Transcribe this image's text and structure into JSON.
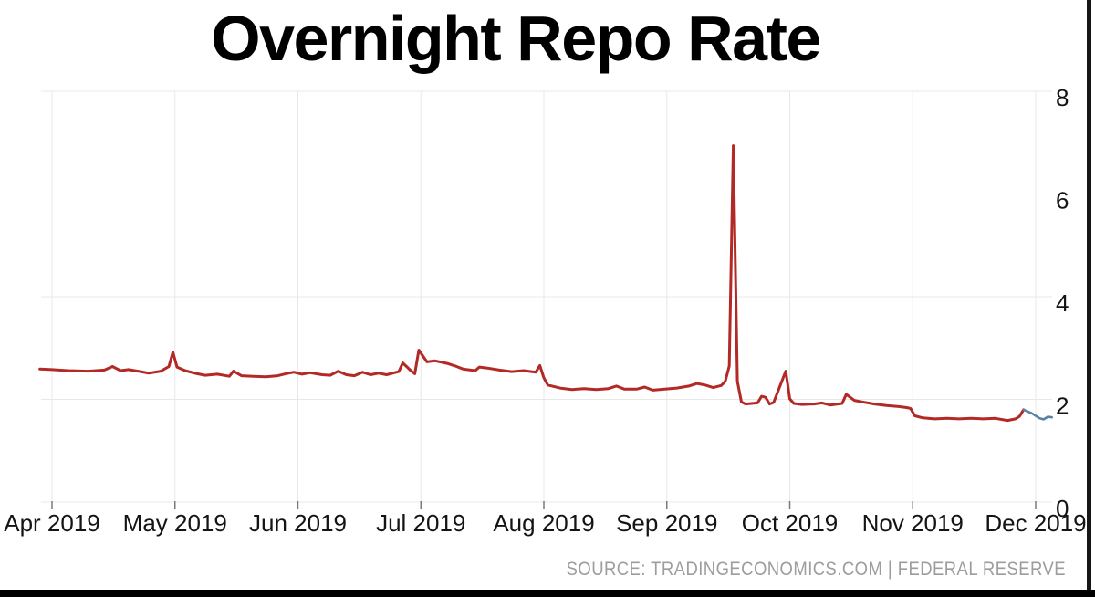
{
  "page": {
    "title": "Overnight Repo Rate",
    "source_credit": "SOURCE: TRADINGECONOMICS.COM | FEDERAL RESERVE"
  },
  "colors": {
    "background": "#ffffff",
    "title_text": "#000000",
    "axis_text": "#141414",
    "axis_tick": "#7a7a7a",
    "grid": "#e8e8e8",
    "series_main": "#b22925",
    "series_latest": "#5d81a5",
    "source_text": "#9d9d9d",
    "frame": "#161616"
  },
  "chart_data": {
    "type": "line",
    "title": "Overnight Repo Rate",
    "xlabel": "",
    "ylabel": "",
    "x_ticks": [
      "Apr 2019",
      "May 2019",
      "Jun 2019",
      "Jul 2019",
      "Aug 2019",
      "Sep 2019",
      "Oct 2019",
      "Nov 2019",
      "Dec 2019"
    ],
    "y_ticks": [
      0,
      2,
      4,
      6,
      8
    ],
    "ylim": [
      0,
      8
    ],
    "y_axis_side": "right",
    "grid": true,
    "legend": false,
    "series": [
      {
        "name": "overnight-repo-rate",
        "color": "#b22925",
        "width": 3,
        "points": [
          [
            "2019-03-29",
            2.59
          ],
          [
            "2019-04-01",
            2.58
          ],
          [
            "2019-04-05",
            2.56
          ],
          [
            "2019-04-10",
            2.55
          ],
          [
            "2019-04-14",
            2.57
          ],
          [
            "2019-04-16",
            2.64
          ],
          [
            "2019-04-18",
            2.56
          ],
          [
            "2019-04-20",
            2.58
          ],
          [
            "2019-04-23",
            2.54
          ],
          [
            "2019-04-25",
            2.51
          ],
          [
            "2019-04-28",
            2.55
          ],
          [
            "2019-04-30",
            2.64
          ],
          [
            "2019-05-01",
            2.92
          ],
          [
            "2019-05-02",
            2.63
          ],
          [
            "2019-05-04",
            2.56
          ],
          [
            "2019-05-07",
            2.5
          ],
          [
            "2019-05-09",
            2.47
          ],
          [
            "2019-05-12",
            2.49
          ],
          [
            "2019-05-15",
            2.45
          ],
          [
            "2019-05-16",
            2.55
          ],
          [
            "2019-05-18",
            2.46
          ],
          [
            "2019-05-21",
            2.45
          ],
          [
            "2019-05-24",
            2.44
          ],
          [
            "2019-05-27",
            2.46
          ],
          [
            "2019-05-29",
            2.5
          ],
          [
            "2019-05-31",
            2.53
          ],
          [
            "2019-06-02",
            2.49
          ],
          [
            "2019-06-04",
            2.52
          ],
          [
            "2019-06-07",
            2.48
          ],
          [
            "2019-06-09",
            2.47
          ],
          [
            "2019-06-11",
            2.55
          ],
          [
            "2019-06-13",
            2.48
          ],
          [
            "2019-06-15",
            2.46
          ],
          [
            "2019-06-17",
            2.53
          ],
          [
            "2019-06-19",
            2.48
          ],
          [
            "2019-06-21",
            2.51
          ],
          [
            "2019-06-23",
            2.48
          ],
          [
            "2019-06-26",
            2.54
          ],
          [
            "2019-06-27",
            2.71
          ],
          [
            "2019-06-29",
            2.56
          ],
          [
            "2019-06-30",
            2.5
          ],
          [
            "2019-07-01",
            2.96
          ],
          [
            "2019-07-03",
            2.73
          ],
          [
            "2019-07-05",
            2.75
          ],
          [
            "2019-07-08",
            2.7
          ],
          [
            "2019-07-10",
            2.65
          ],
          [
            "2019-07-12",
            2.59
          ],
          [
            "2019-07-15",
            2.56
          ],
          [
            "2019-07-16",
            2.63
          ],
          [
            "2019-07-18",
            2.61
          ],
          [
            "2019-07-21",
            2.57
          ],
          [
            "2019-07-24",
            2.54
          ],
          [
            "2019-07-27",
            2.56
          ],
          [
            "2019-07-30",
            2.53
          ],
          [
            "2019-07-31",
            2.66
          ],
          [
            "2019-08-01",
            2.42
          ],
          [
            "2019-08-02",
            2.28
          ],
          [
            "2019-08-05",
            2.22
          ],
          [
            "2019-08-08",
            2.19
          ],
          [
            "2019-08-11",
            2.21
          ],
          [
            "2019-08-14",
            2.19
          ],
          [
            "2019-08-17",
            2.21
          ],
          [
            "2019-08-19",
            2.26
          ],
          [
            "2019-08-21",
            2.2
          ],
          [
            "2019-08-24",
            2.2
          ],
          [
            "2019-08-26",
            2.24
          ],
          [
            "2019-08-28",
            2.18
          ],
          [
            "2019-08-31",
            2.2
          ],
          [
            "2019-09-03",
            2.22
          ],
          [
            "2019-09-06",
            2.26
          ],
          [
            "2019-09-08",
            2.31
          ],
          [
            "2019-09-10",
            2.28
          ],
          [
            "2019-09-12",
            2.23
          ],
          [
            "2019-09-14",
            2.27
          ],
          [
            "2019-09-15",
            2.35
          ],
          [
            "2019-09-16",
            2.65
          ],
          [
            "2019-09-17",
            6.94
          ],
          [
            "2019-09-18",
            2.35
          ],
          [
            "2019-09-19",
            1.95
          ],
          [
            "2019-09-20",
            1.91
          ],
          [
            "2019-09-23",
            1.93
          ],
          [
            "2019-09-24",
            2.06
          ],
          [
            "2019-09-25",
            2.04
          ],
          [
            "2019-09-26",
            1.91
          ],
          [
            "2019-09-27",
            1.94
          ],
          [
            "2019-09-30",
            2.55
          ],
          [
            "2019-10-01",
            2.01
          ],
          [
            "2019-10-02",
            1.92
          ],
          [
            "2019-10-04",
            1.9
          ],
          [
            "2019-10-07",
            1.91
          ],
          [
            "2019-10-09",
            1.93
          ],
          [
            "2019-10-11",
            1.89
          ],
          [
            "2019-10-14",
            1.92
          ],
          [
            "2019-10-15",
            2.1
          ],
          [
            "2019-10-17",
            1.98
          ],
          [
            "2019-10-19",
            1.95
          ],
          [
            "2019-10-22",
            1.91
          ],
          [
            "2019-10-25",
            1.88
          ],
          [
            "2019-10-28",
            1.86
          ],
          [
            "2019-10-30",
            1.84
          ],
          [
            "2019-10-31",
            1.82
          ],
          [
            "2019-11-01",
            1.68
          ],
          [
            "2019-11-03",
            1.64
          ],
          [
            "2019-11-06",
            1.62
          ],
          [
            "2019-11-09",
            1.63
          ],
          [
            "2019-11-12",
            1.62
          ],
          [
            "2019-11-15",
            1.63
          ],
          [
            "2019-11-18",
            1.62
          ],
          [
            "2019-11-21",
            1.63
          ],
          [
            "2019-11-24",
            1.59
          ],
          [
            "2019-11-26",
            1.62
          ],
          [
            "2019-11-27",
            1.67
          ],
          [
            "2019-11-28",
            1.8
          ]
        ]
      },
      {
        "name": "latest-segment",
        "color": "#5d81a5",
        "width": 2.6,
        "points": [
          [
            "2019-11-28",
            1.8
          ],
          [
            "2019-11-30",
            1.73
          ],
          [
            "2019-12-02",
            1.63
          ],
          [
            "2019-12-03",
            1.61
          ],
          [
            "2019-12-04",
            1.66
          ],
          [
            "2019-12-05",
            1.65
          ]
        ]
      }
    ]
  }
}
